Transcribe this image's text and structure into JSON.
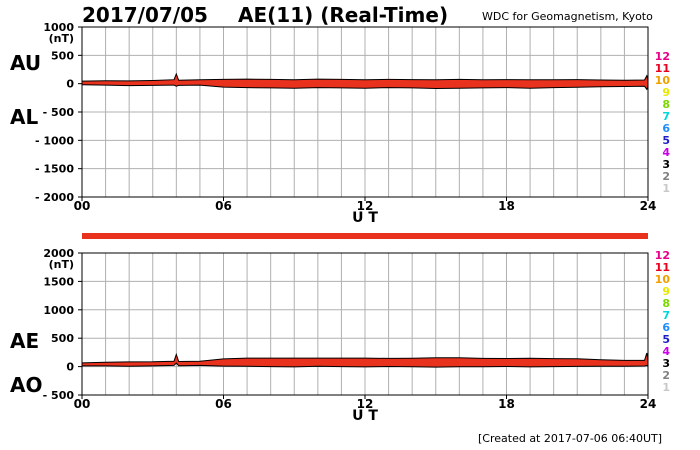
{
  "header": {
    "date": "2017/07/05",
    "title": "AE(11) (Real-Time)",
    "source": "WDC for Geomagnetism, Kyoto",
    "created": "[Created at 2017-07-06 06:40UT]"
  },
  "colors": {
    "band": "#e8321e",
    "line": "#000000",
    "grid": "#b0b0b0"
  },
  "legend": {
    "items": [
      {
        "label": "12",
        "color": "#e8008a"
      },
      {
        "label": "11",
        "color": "#e8001e"
      },
      {
        "label": "10",
        "color": "#f0a000"
      },
      {
        "label": "9",
        "color": "#e8e800"
      },
      {
        "label": "8",
        "color": "#7ad800"
      },
      {
        "label": "7",
        "color": "#00d8d8"
      },
      {
        "label": "6",
        "color": "#1e8cff"
      },
      {
        "label": "5",
        "color": "#1e1ec8"
      },
      {
        "label": "4",
        "color": "#c800e8"
      },
      {
        "label": "3",
        "color": "#000000"
      },
      {
        "label": "2",
        "color": "#808080"
      },
      {
        "label": "1",
        "color": "#c8c8c8"
      }
    ]
  },
  "chart_data": [
    {
      "type": "area",
      "ylabel": "(nT)",
      "xlabel": "U T",
      "xlim": [
        0,
        24
      ],
      "ylim": [
        -2000,
        1000
      ],
      "x_ticks": [
        "00",
        "06",
        "12",
        "18",
        "24"
      ],
      "y_ticks": [
        "1000",
        "500",
        "0",
        "- 500",
        "- 1000",
        "- 1500",
        "- 2000"
      ],
      "grid": true,
      "side_labels": [
        "AU",
        "AL"
      ],
      "x": [
        0,
        1,
        2,
        3,
        3.9,
        4.0,
        4.1,
        5,
        6,
        7,
        8,
        9,
        10,
        11,
        12,
        13,
        14,
        15,
        16,
        17,
        18,
        19,
        20,
        21,
        22,
        23,
        23.85,
        23.95,
        24
      ],
      "series": [
        {
          "name": "AU",
          "values": [
            45,
            50,
            48,
            55,
            70,
            170,
            60,
            70,
            75,
            80,
            75,
            70,
            80,
            75,
            70,
            75,
            72,
            70,
            75,
            70,
            72,
            68,
            70,
            72,
            65,
            60,
            65,
            140,
            60
          ]
        },
        {
          "name": "AL",
          "values": [
            -20,
            -25,
            -35,
            -30,
            -25,
            -45,
            -30,
            -25,
            -60,
            -70,
            -75,
            -80,
            -70,
            -75,
            -80,
            -70,
            -75,
            -85,
            -80,
            -75,
            -70,
            -80,
            -70,
            -65,
            -55,
            -50,
            -45,
            -100,
            -40
          ]
        }
      ]
    },
    {
      "type": "area",
      "ylabel": "(nT)",
      "xlabel": "U T",
      "xlim": [
        0,
        24
      ],
      "ylim": [
        -500,
        2000
      ],
      "x_ticks": [
        "00",
        "06",
        "12",
        "18",
        "24"
      ],
      "y_ticks": [
        "2000",
        "1500",
        "1000",
        "500",
        "0",
        "- 500"
      ],
      "grid": true,
      "side_labels": [
        "AE",
        "AO"
      ],
      "x": [
        0,
        1,
        2,
        3,
        3.9,
        4.0,
        4.1,
        5,
        6,
        7,
        8,
        9,
        10,
        11,
        12,
        13,
        14,
        15,
        16,
        17,
        18,
        19,
        20,
        21,
        22,
        23,
        23.85,
        23.95,
        24
      ],
      "series": [
        {
          "name": "AE",
          "values": [
            65,
            75,
            83,
            85,
            95,
            215,
            90,
            95,
            135,
            150,
            150,
            150,
            150,
            150,
            150,
            145,
            147,
            155,
            155,
            145,
            142,
            148,
            140,
            137,
            120,
            110,
            110,
            240,
            100
          ]
        },
        {
          "name": "AO",
          "values": [
            12,
            12,
            6,
            12,
            22,
            62,
            15,
            22,
            8,
            5,
            0,
            -5,
            5,
            0,
            -5,
            2,
            -2,
            -8,
            -3,
            -2,
            1,
            -6,
            0,
            3,
            5,
            5,
            10,
            20,
            10
          ]
        }
      ]
    }
  ]
}
